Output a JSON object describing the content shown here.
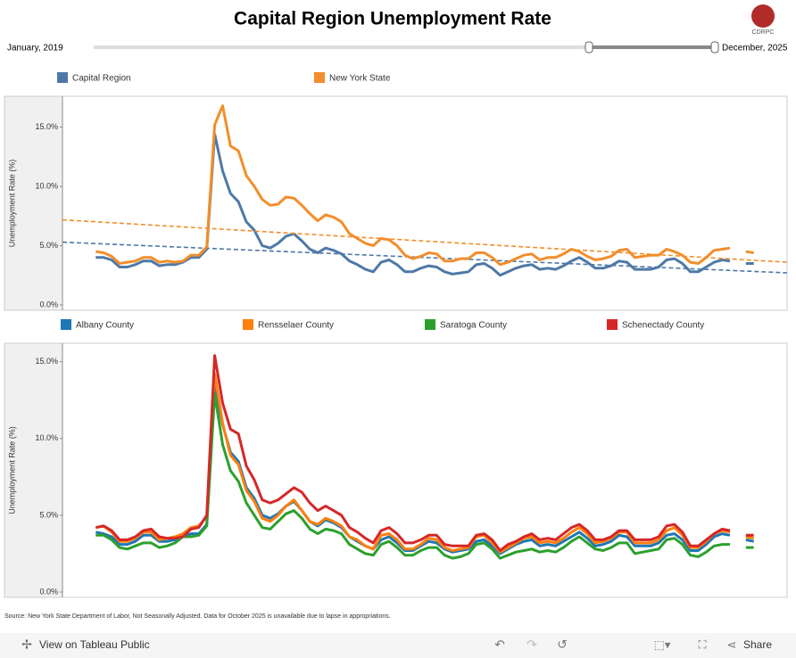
{
  "header": {
    "title": "Capital Region Unemployment Rate",
    "logo": "CDRPC"
  },
  "slider": {
    "start_label": "January, 2019",
    "end_label": "December, 2025"
  },
  "chart_data": [
    {
      "type": "line",
      "y_label": "Unemployment Rate (%)",
      "ylim": [
        0,
        17.6
      ],
      "yticks": [
        {
          "value": 0,
          "label": "0.0%"
        },
        {
          "value": 5,
          "label": "5.0%"
        },
        {
          "value": 10,
          "label": "10.0%"
        },
        {
          "value": 15,
          "label": "15.0%"
        }
      ],
      "grid": false,
      "trend_lines": true,
      "series": [
        {
          "name": "Capital Region",
          "color": "#4e79a7",
          "values": [
            4.0,
            4.0,
            3.8,
            3.2,
            3.2,
            3.4,
            3.7,
            3.7,
            3.3,
            3.4,
            3.4,
            3.6,
            4.0,
            4.0,
            4.7,
            14.4,
            11.3,
            9.4,
            8.7,
            7.0,
            6.3,
            5.0,
            4.8,
            5.2,
            5.8,
            6.0,
            5.4,
            4.7,
            4.4,
            4.8,
            4.6,
            4.3,
            3.7,
            3.4,
            3.0,
            2.8,
            3.6,
            3.8,
            3.4,
            2.8,
            2.8,
            3.1,
            3.3,
            3.2,
            2.8,
            2.6,
            2.7,
            2.8,
            3.4,
            3.5,
            3.1,
            2.5,
            2.8,
            3.1,
            3.3,
            3.4,
            3.0,
            3.1,
            3.0,
            3.3,
            3.7,
            4.0,
            3.6,
            3.1,
            3.1,
            3.3,
            3.7,
            3.6,
            3.0,
            3.0,
            3.0,
            3.2,
            3.8,
            3.9,
            3.5,
            2.8,
            2.8,
            3.2,
            3.6,
            3.8,
            3.7,
            null,
            3.5,
            3.5
          ]
        },
        {
          "name": "New York State",
          "color": "#f28e2b",
          "values": [
            4.5,
            4.4,
            4.1,
            3.5,
            3.6,
            3.7,
            4.0,
            4.0,
            3.6,
            3.7,
            3.6,
            3.7,
            4.2,
            4.2,
            4.9,
            15.2,
            16.8,
            13.4,
            13.0,
            10.9,
            10.0,
            8.9,
            8.4,
            8.5,
            9.1,
            9.0,
            8.4,
            7.7,
            7.1,
            7.6,
            7.4,
            7.0,
            6.0,
            5.6,
            5.2,
            5.0,
            5.6,
            5.5,
            5.0,
            4.2,
            3.9,
            4.1,
            4.4,
            4.3,
            3.7,
            3.7,
            3.9,
            3.9,
            4.4,
            4.4,
            4.0,
            3.4,
            3.6,
            3.9,
            4.2,
            4.3,
            3.8,
            4.0,
            4.0,
            4.3,
            4.7,
            4.5,
            4.1,
            3.8,
            3.9,
            4.1,
            4.6,
            4.7,
            4.0,
            4.1,
            4.2,
            4.2,
            4.7,
            4.5,
            4.2,
            3.6,
            3.5,
            4.0,
            4.6,
            4.7,
            4.8,
            null,
            4.5,
            4.4
          ]
        }
      ]
    },
    {
      "type": "line",
      "y_label": "Unemployment Rate (%)",
      "ylim": [
        0,
        16.2
      ],
      "yticks": [
        {
          "value": 0,
          "label": "0.0%"
        },
        {
          "value": 5,
          "label": "5.0%"
        },
        {
          "value": 10,
          "label": "10.0%"
        },
        {
          "value": 15,
          "label": "15.0%"
        }
      ],
      "grid": false,
      "trend_lines": false,
      "series": [
        {
          "name": "Albany County",
          "color": "#1f77b4",
          "values": [
            3.9,
            3.8,
            3.6,
            3.1,
            3.1,
            3.3,
            3.7,
            3.7,
            3.3,
            3.3,
            3.4,
            3.6,
            3.8,
            3.8,
            4.4,
            13.5,
            10.9,
            9.1,
            8.5,
            6.8,
            6.1,
            5.0,
            4.8,
            5.1,
            5.6,
            5.9,
            5.3,
            4.6,
            4.3,
            4.7,
            4.5,
            4.2,
            3.6,
            3.3,
            3.0,
            2.8,
            3.4,
            3.6,
            3.2,
            2.7,
            2.7,
            3.0,
            3.3,
            3.2,
            2.8,
            2.6,
            2.7,
            2.8,
            3.3,
            3.4,
            3.0,
            2.5,
            2.8,
            3.1,
            3.3,
            3.4,
            3.0,
            3.1,
            3.0,
            3.3,
            3.6,
            3.9,
            3.5,
            3.0,
            3.1,
            3.3,
            3.7,
            3.6,
            3.0,
            3.0,
            3.0,
            3.2,
            3.7,
            3.8,
            3.4,
            2.7,
            2.7,
            3.1,
            3.6,
            3.8,
            3.7,
            null,
            3.4,
            3.3
          ]
        },
        {
          "name": "Rensselaer County",
          "color": "#ff7f0e",
          "values": [
            4.2,
            4.3,
            3.9,
            3.3,
            3.3,
            3.5,
            3.9,
            3.9,
            3.4,
            3.5,
            3.6,
            3.8,
            4.2,
            4.3,
            4.9,
            14.2,
            11.0,
            8.9,
            8.3,
            6.6,
            5.9,
            4.8,
            4.6,
            5.0,
            5.6,
            6.0,
            5.3,
            4.6,
            4.4,
            4.8,
            4.6,
            4.3,
            3.6,
            3.4,
            3.0,
            2.8,
            3.7,
            3.8,
            3.4,
            2.8,
            2.8,
            3.1,
            3.5,
            3.4,
            2.9,
            2.7,
            2.8,
            2.9,
            3.6,
            3.7,
            3.2,
            2.6,
            2.9,
            3.2,
            3.5,
            3.6,
            3.2,
            3.3,
            3.2,
            3.5,
            3.9,
            4.2,
            3.8,
            3.2,
            3.3,
            3.5,
            3.9,
            3.9,
            3.2,
            3.2,
            3.2,
            3.4,
            4.0,
            4.2,
            3.7,
            2.9,
            2.9,
            3.3,
            3.8,
            4.0,
            3.9,
            null,
            3.6,
            3.5
          ]
        },
        {
          "name": "Saratoga County",
          "color": "#2ca02c",
          "values": [
            3.7,
            3.7,
            3.4,
            2.9,
            2.8,
            3.0,
            3.2,
            3.2,
            2.9,
            3.0,
            3.2,
            3.6,
            3.6,
            3.7,
            4.3,
            12.9,
            9.6,
            7.9,
            7.2,
            5.8,
            5.0,
            4.2,
            4.1,
            4.6,
            5.1,
            5.3,
            4.8,
            4.1,
            3.8,
            4.1,
            4.0,
            3.8,
            3.1,
            2.8,
            2.5,
            2.4,
            3.1,
            3.3,
            2.9,
            2.4,
            2.4,
            2.7,
            2.9,
            2.9,
            2.4,
            2.2,
            2.3,
            2.5,
            3.1,
            3.2,
            2.8,
            2.2,
            2.4,
            2.6,
            2.7,
            2.8,
            2.6,
            2.7,
            2.6,
            2.9,
            3.3,
            3.6,
            3.2,
            2.8,
            2.7,
            2.9,
            3.2,
            3.2,
            2.5,
            2.6,
            2.7,
            2.8,
            3.4,
            3.5,
            3.1,
            2.4,
            2.3,
            2.6,
            3.0,
            3.1,
            3.1,
            null,
            2.9,
            2.9
          ]
        },
        {
          "name": "Schenectady County",
          "color": "#d62728",
          "values": [
            4.2,
            4.3,
            4.0,
            3.4,
            3.4,
            3.6,
            4.0,
            4.1,
            3.6,
            3.5,
            3.5,
            3.6,
            4.1,
            4.2,
            5.0,
            15.4,
            12.3,
            10.6,
            10.3,
            8.2,
            7.3,
            6.0,
            5.8,
            6.0,
            6.4,
            6.8,
            6.5,
            5.8,
            5.3,
            5.6,
            5.3,
            5.0,
            4.2,
            3.9,
            3.5,
            3.2,
            4.0,
            4.2,
            3.8,
            3.2,
            3.2,
            3.4,
            3.7,
            3.7,
            3.1,
            3.0,
            3.0,
            3.0,
            3.7,
            3.8,
            3.4,
            2.7,
            3.1,
            3.3,
            3.6,
            3.8,
            3.4,
            3.5,
            3.4,
            3.8,
            4.2,
            4.4,
            4.0,
            3.4,
            3.4,
            3.6,
            4.0,
            4.0,
            3.4,
            3.4,
            3.4,
            3.6,
            4.3,
            4.4,
            3.9,
            3.0,
            3.0,
            3.4,
            3.8,
            4.1,
            4.0,
            null,
            3.7,
            3.7
          ]
        }
      ]
    }
  ],
  "source": "Source: New York State Department of Labor, Not Seasonally Adjusted. Data for October 2025 is unavailable due to lapse in appropriations.",
  "toolbar": {
    "view": "View on Tableau Public",
    "share": "Share"
  }
}
